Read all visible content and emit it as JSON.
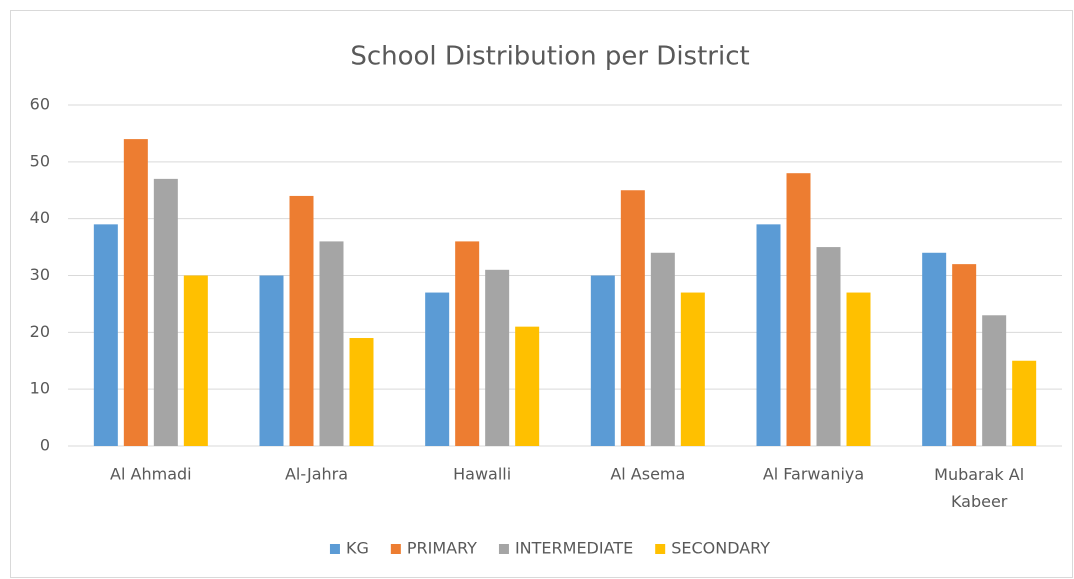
{
  "chart_data": {
    "type": "bar",
    "title": "School Distribution per District",
    "categories": [
      "Al Ahmadi",
      "Al-Jahra",
      "Hawalli",
      "Al Asema",
      "Al Farwaniya",
      "Mubarak Al Kabeer"
    ],
    "series": [
      {
        "name": "KG",
        "color": "#5b9bd5",
        "values": [
          39,
          30,
          27,
          30,
          39,
          34
        ]
      },
      {
        "name": "PRIMARY",
        "color": "#ed7d31",
        "values": [
          54,
          44,
          36,
          45,
          48,
          32
        ]
      },
      {
        "name": "INTERMEDIATE",
        "color": "#a5a5a5",
        "values": [
          47,
          36,
          31,
          34,
          35,
          23
        ]
      },
      {
        "name": "SECONDARY",
        "color": "#ffc000",
        "values": [
          30,
          19,
          21,
          27,
          27,
          15
        ]
      }
    ],
    "ylim": [
      0,
      60
    ],
    "yticks": [
      0,
      10,
      20,
      30,
      40,
      50,
      60
    ],
    "grid": true,
    "legend": "bottom"
  }
}
